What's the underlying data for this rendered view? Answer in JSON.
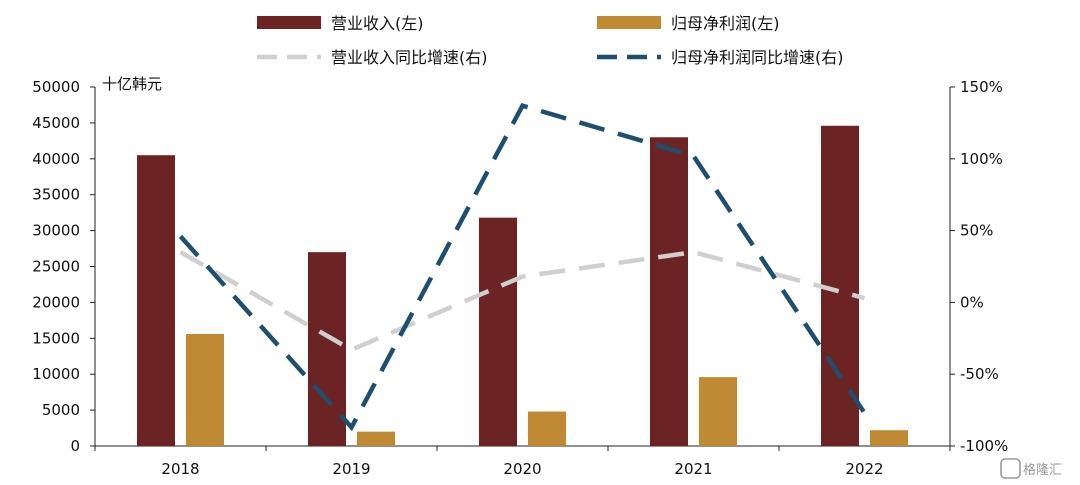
{
  "chart_data": {
    "type": "bar",
    "categories": [
      "2018",
      "2019",
      "2020",
      "2021",
      "2022"
    ],
    "y_left_unit": "十亿韩元",
    "ylim_left": [
      0,
      50000
    ],
    "yticks_left": [
      "0",
      "5000",
      "10000",
      "15000",
      "20000",
      "25000",
      "30000",
      "35000",
      "40000",
      "45000",
      "50000"
    ],
    "ylim_right": [
      -100,
      150
    ],
    "yticks_right": [
      "-100%",
      "-50%",
      "0%",
      "50%",
      "100%",
      "150%"
    ],
    "grid": false,
    "legend_position": "top",
    "series": [
      {
        "name": "营业收入(左)",
        "type": "bar",
        "axis": "left",
        "color": "#6b2323",
        "values": [
          40500,
          27000,
          31800,
          43000,
          44600
        ]
      },
      {
        "name": "归母净利润(左)",
        "type": "bar",
        "axis": "left",
        "color": "#c08a35",
        "values": [
          15600,
          2000,
          4800,
          9600,
          2200
        ]
      },
      {
        "name": "营业收入同比增速(右)",
        "type": "line",
        "axis": "right",
        "style": "dashed",
        "color": "#cfcfcf",
        "values": [
          35,
          -33,
          18,
          35,
          3
        ]
      },
      {
        "name": "归母净利润同比增速(右)",
        "type": "line",
        "axis": "right",
        "style": "dashed",
        "color": "#1f4e6e",
        "values": [
          46,
          -87,
          137,
          102,
          -77
        ]
      }
    ]
  },
  "watermark": {
    "text": "格隆汇"
  }
}
